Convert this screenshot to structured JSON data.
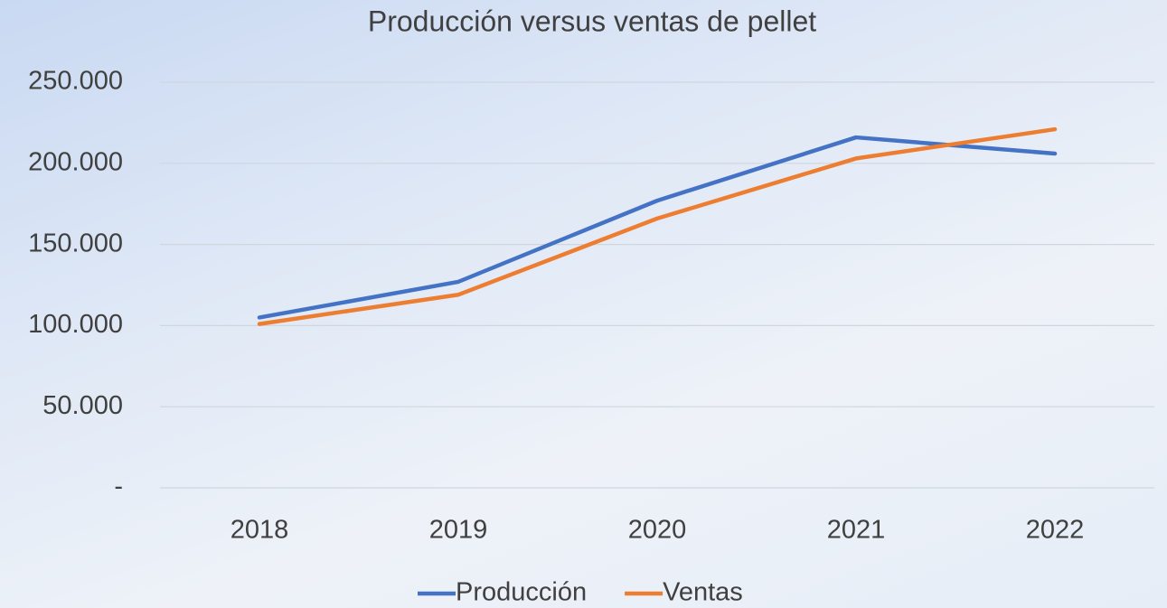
{
  "chart_data": {
    "type": "line",
    "title": "Producción versus ventas de pellet",
    "categories": [
      "2018",
      "2019",
      "2020",
      "2021",
      "2022"
    ],
    "series": [
      {
        "name": "Producción",
        "color": "#4472c4",
        "values": [
          105000,
          127000,
          177000,
          216000,
          206000
        ]
      },
      {
        "name": "Ventas",
        "color": "#ed7d31",
        "values": [
          101000,
          119000,
          166000,
          203000,
          221000
        ]
      }
    ],
    "ylim": [
      0,
      250000
    ],
    "yticks": [
      {
        "value": 0,
        "label": "-"
      },
      {
        "value": 50000,
        "label": "50.000"
      },
      {
        "value": 100000,
        "label": "100.000"
      },
      {
        "value": 150000,
        "label": "150.000"
      },
      {
        "value": 200000,
        "label": "200.000"
      },
      {
        "value": 250000,
        "label": "250.000"
      }
    ],
    "grid": true,
    "legend": "bottom"
  }
}
